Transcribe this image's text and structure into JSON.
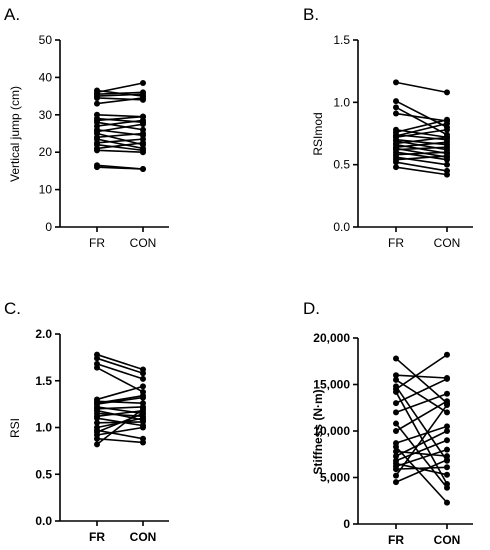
{
  "chart_data": [
    {
      "type": "line",
      "panel_label": "A.",
      "ylabel": "Vertical jump (cm)",
      "categories": [
        "FR",
        "CON"
      ],
      "ylim": [
        0,
        50
      ],
      "yticks": [
        0,
        10,
        20,
        30,
        40,
        50
      ],
      "ytick_labels": [
        "0",
        "10",
        "20",
        "30",
        "40",
        "50"
      ],
      "series": [
        {
          "values": [
            36.5,
            35.0
          ]
        },
        {
          "values": [
            36.0,
            38.5
          ]
        },
        {
          "values": [
            35.5,
            36.0
          ]
        },
        {
          "values": [
            35.0,
            35.5
          ]
        },
        {
          "values": [
            34.5,
            34.0
          ]
        },
        {
          "values": [
            33.0,
            34.5
          ]
        },
        {
          "values": [
            30.0,
            29.5
          ]
        },
        {
          "values": [
            29.0,
            28.0
          ]
        },
        {
          "values": [
            28.5,
            29.5
          ]
        },
        {
          "values": [
            28.0,
            26.0
          ]
        },
        {
          "values": [
            27.0,
            28.5
          ]
        },
        {
          "values": [
            26.0,
            24.5
          ]
        },
        {
          "values": [
            25.5,
            27.5
          ]
        },
        {
          "values": [
            25.0,
            22.0
          ]
        },
        {
          "values": [
            24.0,
            25.0
          ]
        },
        {
          "values": [
            23.5,
            21.0
          ]
        },
        {
          "values": [
            22.5,
            23.5
          ]
        },
        {
          "values": [
            22.0,
            20.5
          ]
        },
        {
          "values": [
            21.0,
            22.5
          ]
        },
        {
          "values": [
            20.5,
            20.0
          ]
        },
        {
          "values": [
            16.5,
            15.5
          ]
        },
        {
          "values": [
            16.0,
            15.5
          ]
        }
      ]
    },
    {
      "type": "line",
      "panel_label": "B.",
      "ylabel": "RSImod",
      "categories": [
        "FR",
        "CON"
      ],
      "ylim": [
        0,
        1.5
      ],
      "yticks": [
        0,
        0.5,
        1.0,
        1.5
      ],
      "ytick_labels": [
        "0.0",
        "0.5",
        "1.0",
        "1.5"
      ],
      "series": [
        {
          "values": [
            1.16,
            1.08
          ]
        },
        {
          "values": [
            1.01,
            0.8
          ]
        },
        {
          "values": [
            0.96,
            0.74
          ]
        },
        {
          "values": [
            0.91,
            0.85
          ]
        },
        {
          "values": [
            0.78,
            0.72
          ]
        },
        {
          "values": [
            0.76,
            0.86
          ]
        },
        {
          "values": [
            0.74,
            0.7
          ]
        },
        {
          "values": [
            0.73,
            0.83
          ]
        },
        {
          "values": [
            0.72,
            0.78
          ]
        },
        {
          "values": [
            0.7,
            0.66
          ]
        },
        {
          "values": [
            0.69,
            0.62
          ]
        },
        {
          "values": [
            0.67,
            0.72
          ]
        },
        {
          "values": [
            0.66,
            0.59
          ]
        },
        {
          "values": [
            0.64,
            0.68
          ]
        },
        {
          "values": [
            0.63,
            0.56
          ]
        },
        {
          "values": [
            0.62,
            0.64
          ]
        },
        {
          "values": [
            0.6,
            0.54
          ]
        },
        {
          "values": [
            0.58,
            0.6
          ]
        },
        {
          "values": [
            0.56,
            0.5
          ]
        },
        {
          "values": [
            0.54,
            0.57
          ]
        },
        {
          "values": [
            0.52,
            0.45
          ]
        },
        {
          "values": [
            0.48,
            0.42
          ]
        }
      ]
    },
    {
      "type": "line",
      "panel_label": "C.",
      "ylabel": "RSI",
      "categories": [
        "FR",
        "CON"
      ],
      "ylim": [
        0,
        2.0
      ],
      "yticks": [
        0,
        0.5,
        1.0,
        1.5,
        2.0
      ],
      "ytick_labels": [
        "0.0",
        "0.5",
        "1.0",
        "1.5",
        "2.0"
      ],
      "series": [
        {
          "values": [
            1.78,
            1.62
          ]
        },
        {
          "values": [
            1.74,
            1.58
          ]
        },
        {
          "values": [
            1.68,
            1.52
          ]
        },
        {
          "values": [
            1.64,
            1.38
          ]
        },
        {
          "values": [
            1.3,
            1.44
          ]
        },
        {
          "values": [
            1.28,
            1.26
          ]
        },
        {
          "values": [
            1.26,
            1.34
          ]
        },
        {
          "values": [
            1.25,
            1.32
          ]
        },
        {
          "values": [
            1.22,
            1.15
          ]
        },
        {
          "values": [
            1.2,
            1.22
          ]
        },
        {
          "values": [
            1.18,
            1.08
          ]
        },
        {
          "values": [
            1.15,
            1.12
          ]
        },
        {
          "values": [
            1.12,
            1.18
          ]
        },
        {
          "values": [
            1.1,
            1.02
          ]
        },
        {
          "values": [
            1.05,
            1.06
          ]
        },
        {
          "values": [
            1.0,
            1.1
          ]
        },
        {
          "values": [
            0.97,
            0.88
          ]
        },
        {
          "values": [
            0.95,
            1.15
          ]
        },
        {
          "values": [
            0.92,
            1.0
          ]
        },
        {
          "values": [
            0.88,
            0.84
          ]
        },
        {
          "values": [
            0.82,
            1.2
          ]
        }
      ]
    },
    {
      "type": "line",
      "panel_label": "D.",
      "ylabel": "Stiffness (N·m)",
      "categories": [
        "FR",
        "CON"
      ],
      "ylim": [
        0,
        20000
      ],
      "yticks": [
        0,
        5000,
        10000,
        15000,
        20000
      ],
      "ytick_labels": [
        "0",
        "5,000",
        "10,000",
        "15,000",
        "20,000"
      ],
      "series": [
        {
          "values": [
            17800,
            13000
          ]
        },
        {
          "values": [
            16000,
            15700
          ]
        },
        {
          "values": [
            15500,
            12000
          ]
        },
        {
          "values": [
            14800,
            6800
          ]
        },
        {
          "values": [
            14500,
            18200
          ]
        },
        {
          "values": [
            14200,
            4300
          ]
        },
        {
          "values": [
            13000,
            15600
          ]
        },
        {
          "values": [
            12000,
            14000
          ]
        },
        {
          "values": [
            10800,
            3900
          ]
        },
        {
          "values": [
            10000,
            13200
          ]
        },
        {
          "values": [
            8700,
            10500
          ]
        },
        {
          "values": [
            8300,
            2300
          ]
        },
        {
          "values": [
            7800,
            7300
          ]
        },
        {
          "values": [
            7300,
            10000
          ]
        },
        {
          "values": [
            6800,
            9000
          ]
        },
        {
          "values": [
            6500,
            5300
          ]
        },
        {
          "values": [
            6200,
            8000
          ]
        },
        {
          "values": [
            5900,
            6100
          ]
        },
        {
          "values": [
            5200,
            12800
          ]
        },
        {
          "values": [
            4500,
            6900
          ]
        }
      ]
    }
  ]
}
